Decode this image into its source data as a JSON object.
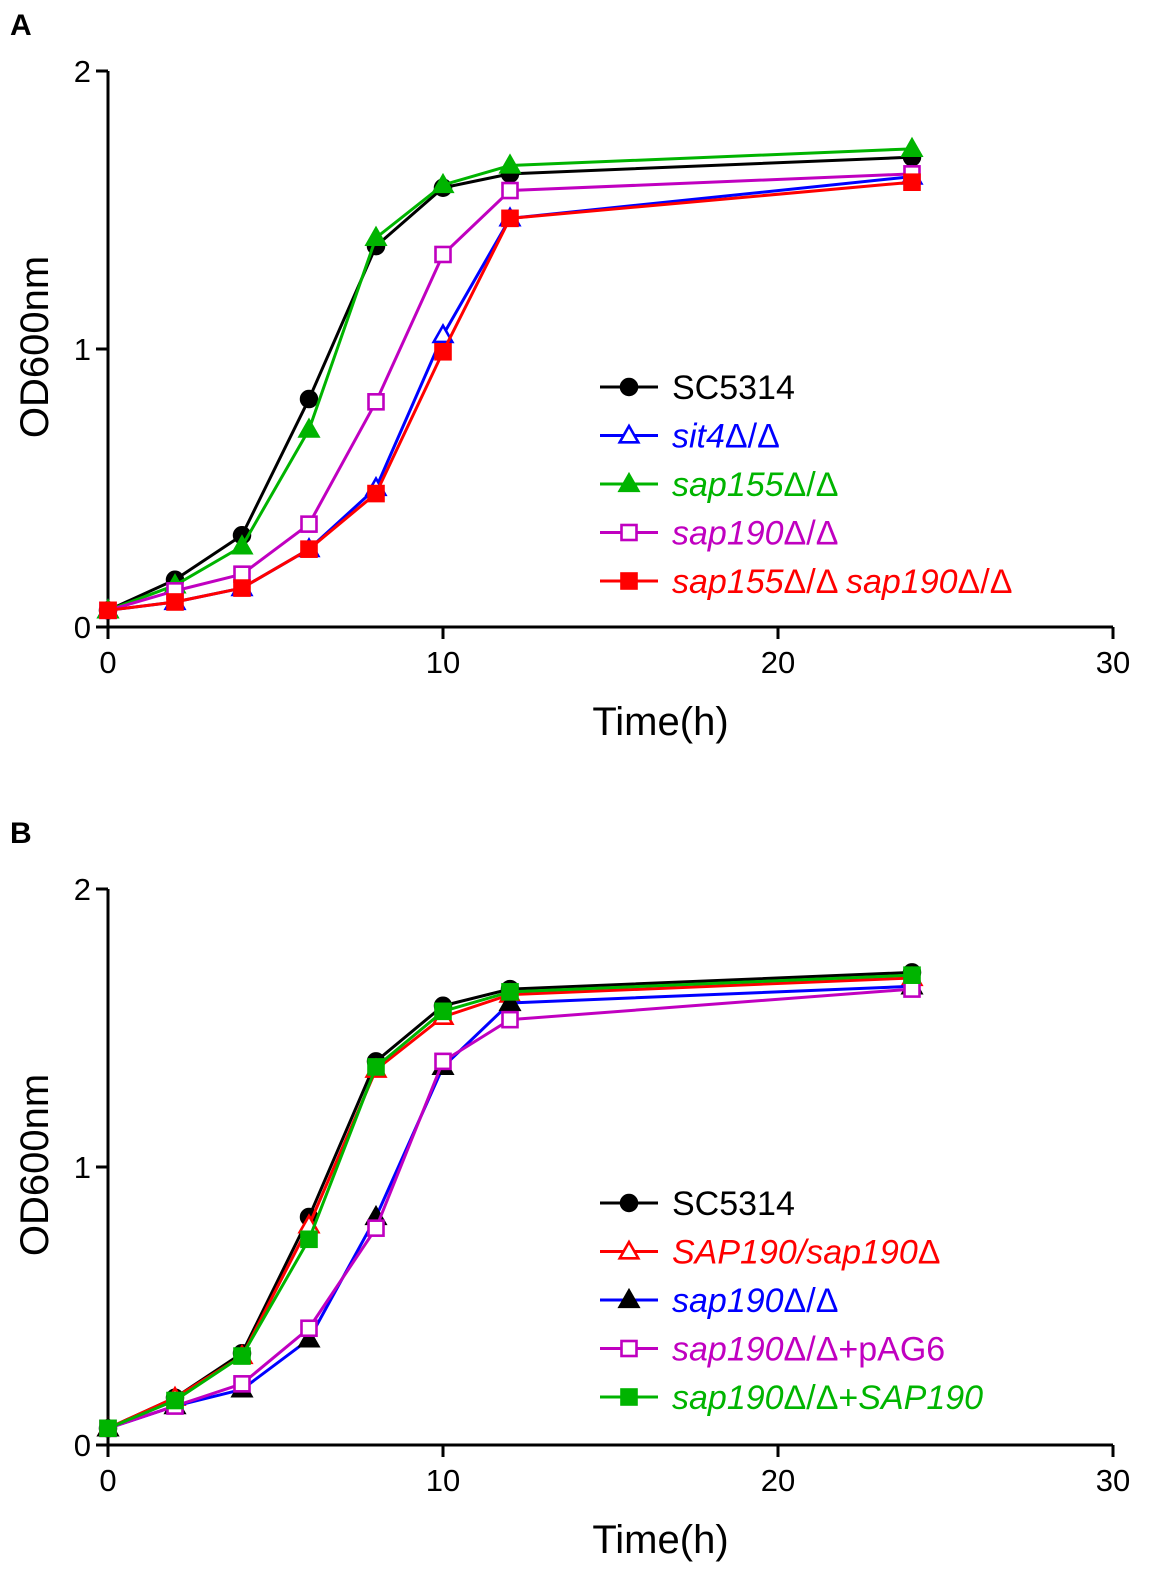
{
  "chart_data": [
    {
      "type": "line",
      "panel_label": "A",
      "xlabel": "Time(h)",
      "ylabel": "OD600nm",
      "xlim": [
        0,
        30
      ],
      "ylim": [
        0,
        2
      ],
      "xticks": [
        0,
        10,
        20,
        30
      ],
      "yticks": [
        0,
        1,
        2
      ],
      "legend_position": "center-right",
      "x": [
        0,
        2,
        4,
        6,
        8,
        10,
        12,
        24
      ],
      "series": [
        {
          "name": "SC5314",
          "color": "#000000",
          "marker": "circle-filled",
          "label_parts": [
            {
              "t": "SC5314",
              "i": false
            }
          ],
          "values": [
            0.06,
            0.17,
            0.33,
            0.82,
            1.37,
            1.58,
            1.63,
            1.69
          ]
        },
        {
          "name": "sit4Δ/Δ",
          "color": "#0000ff",
          "marker": "triangle-open",
          "label_parts": [
            {
              "t": "sit4",
              "i": true
            },
            {
              "t": "Δ/Δ",
              "i": false
            }
          ],
          "values": [
            0.06,
            0.09,
            0.14,
            0.28,
            0.5,
            1.05,
            1.47,
            1.62
          ]
        },
        {
          "name": "sap155Δ/Δ",
          "color": "#00b400",
          "marker": "triangle-filled",
          "label_parts": [
            {
              "t": "sap155",
              "i": true
            },
            {
              "t": "Δ/Δ",
              "i": false
            }
          ],
          "values": [
            0.06,
            0.15,
            0.29,
            0.71,
            1.4,
            1.59,
            1.66,
            1.72
          ]
        },
        {
          "name": "sap190Δ/Δ",
          "color": "#c000c0",
          "marker": "square-open",
          "label_parts": [
            {
              "t": "sap190",
              "i": true
            },
            {
              "t": "Δ/Δ",
              "i": false
            }
          ],
          "values": [
            0.06,
            0.13,
            0.19,
            0.37,
            0.81,
            1.34,
            1.57,
            1.63
          ]
        },
        {
          "name": "sap155Δ/Δ sap190Δ/Δ",
          "color": "#ff0000",
          "marker": "square-filled",
          "label_parts": [
            {
              "t": "sap155",
              "i": true
            },
            {
              "t": "Δ/Δ ",
              "i": false
            },
            {
              "t": "sap190",
              "i": true
            },
            {
              "t": "Δ/Δ",
              "i": false
            }
          ],
          "values": [
            0.06,
            0.09,
            0.14,
            0.28,
            0.48,
            0.99,
            1.47,
            1.6
          ]
        }
      ]
    },
    {
      "type": "line",
      "panel_label": "B",
      "xlabel": "Time(h)",
      "ylabel": "OD600nm",
      "xlim": [
        0,
        30
      ],
      "ylim": [
        0,
        2
      ],
      "xticks": [
        0,
        10,
        20,
        30
      ],
      "yticks": [
        0,
        1,
        2
      ],
      "legend_position": "bottom-right",
      "x": [
        0,
        2,
        4,
        6,
        8,
        10,
        12,
        24
      ],
      "series": [
        {
          "name": "SC5314",
          "color": "#000000",
          "marker": "circle-filled",
          "label_parts": [
            {
              "t": "SC5314",
              "i": false
            }
          ],
          "values": [
            0.06,
            0.17,
            0.33,
            0.82,
            1.38,
            1.58,
            1.64,
            1.7
          ]
        },
        {
          "name": "SAP190/sap190Δ",
          "color": "#ff0000",
          "marker": "triangle-open",
          "label_parts": [
            {
              "t": "SAP190/sap190",
              "i": true
            },
            {
              "t": "Δ",
              "i": false
            }
          ],
          "values": [
            0.06,
            0.17,
            0.32,
            0.79,
            1.35,
            1.54,
            1.62,
            1.68
          ]
        },
        {
          "name": "sap190Δ/Δ",
          "color": "#0000ff",
          "marker": "triangle-filled",
          "line_color": "#0000ff",
          "marker_color": "#000000",
          "label_parts": [
            {
              "t": "sap190",
              "i": true
            },
            {
              "t": "Δ/Δ",
              "i": false
            }
          ],
          "values": [
            0.06,
            0.14,
            0.2,
            0.38,
            0.82,
            1.36,
            1.59,
            1.65
          ]
        },
        {
          "name": "sap190Δ/Δ+pAG6",
          "color": "#c000c0",
          "marker": "square-open",
          "label_parts": [
            {
              "t": "sap190",
              "i": true
            },
            {
              "t": "Δ/Δ",
              "i": false
            },
            {
              "t": "+pAG6",
              "i": false
            }
          ],
          "values": [
            0.06,
            0.14,
            0.22,
            0.42,
            0.78,
            1.38,
            1.53,
            1.64
          ]
        },
        {
          "name": "sap190Δ/Δ+SAP190",
          "color": "#00b400",
          "marker": "square-filled",
          "label_parts": [
            {
              "t": "sap190",
              "i": true
            },
            {
              "t": "Δ/Δ",
              "i": false
            },
            {
              "t": "+",
              "i": false
            },
            {
              "t": "SAP190",
              "i": true
            }
          ],
          "values": [
            0.06,
            0.16,
            0.32,
            0.74,
            1.36,
            1.56,
            1.63,
            1.69
          ]
        }
      ]
    }
  ]
}
